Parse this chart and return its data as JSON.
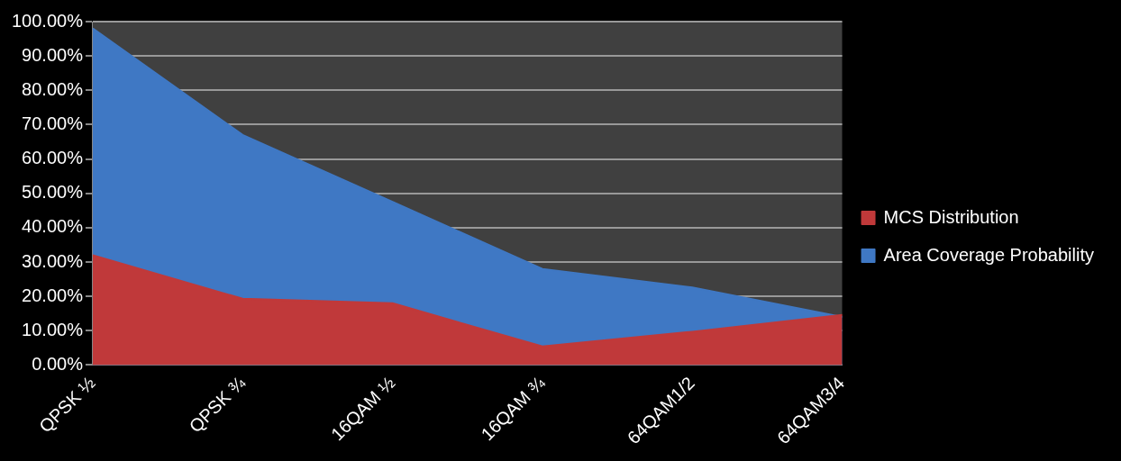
{
  "chart_data": {
    "type": "area",
    "categories": [
      "QPSK ½",
      "QPSK ¾",
      "16QAM ½",
      "16QAM ¾",
      "64QAM1/2",
      "64QAM3/4"
    ],
    "series": [
      {
        "name": "Area Coverage Probability",
        "color": "#3f78c4",
        "values": [
          98,
          67,
          47.5,
          28,
          22.6,
          14
        ]
      },
      {
        "name": "MCS Distribution",
        "color": "#c0393a",
        "values": [
          32,
          19.3,
          18,
          5.4,
          9.7,
          14.6
        ]
      }
    ],
    "ylim": [
      0,
      100
    ],
    "yticks": [
      {
        "value": 0,
        "label": "0.00%"
      },
      {
        "value": 10,
        "label": "10.00%"
      },
      {
        "value": 20,
        "label": "20.00%"
      },
      {
        "value": 30,
        "label": "30.00%"
      },
      {
        "value": 40,
        "label": "40.00%"
      },
      {
        "value": 50,
        "label": "50.00%"
      },
      {
        "value": 60,
        "label": "60.00%"
      },
      {
        "value": 70,
        "label": "70.00%"
      },
      {
        "value": 80,
        "label": "80.00%"
      },
      {
        "value": 90,
        "label": "90.00%"
      },
      {
        "value": 100,
        "label": "100.00%"
      }
    ],
    "grid": "y",
    "legend": "right"
  }
}
